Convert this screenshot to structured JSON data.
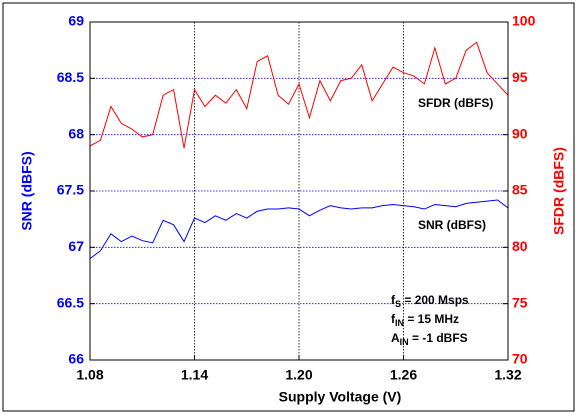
{
  "chart_data": {
    "type": "line",
    "x_label": "Supply Voltage (V)",
    "y_label": "SNR (dBFS)",
    "y2_label": "SFDR (dBFS)",
    "x": [
      1.08,
      1.086,
      1.092,
      1.098,
      1.104,
      1.11,
      1.116,
      1.122,
      1.128,
      1.134,
      1.14,
      1.146,
      1.152,
      1.158,
      1.164,
      1.17,
      1.176,
      1.182,
      1.188,
      1.194,
      1.2,
      1.206,
      1.212,
      1.218,
      1.224,
      1.23,
      1.236,
      1.242,
      1.248,
      1.254,
      1.26,
      1.266,
      1.272,
      1.278,
      1.284,
      1.29,
      1.296,
      1.302,
      1.308,
      1.314,
      1.32
    ],
    "series": [
      {
        "name": "SNR (dBFS)",
        "color": "#0000ff",
        "axis": "y",
        "values": [
          66.9,
          66.97,
          67.12,
          67.05,
          67.1,
          67.06,
          67.04,
          67.24,
          67.2,
          67.05,
          67.26,
          67.22,
          67.28,
          67.24,
          67.3,
          67.26,
          67.32,
          67.34,
          67.34,
          67.35,
          67.34,
          67.28,
          67.33,
          67.37,
          67.35,
          67.34,
          67.35,
          67.35,
          67.37,
          67.38,
          67.37,
          67.36,
          67.34,
          67.38,
          67.37,
          67.36,
          67.39,
          67.4,
          67.41,
          67.42,
          67.35
        ]
      },
      {
        "name": "SFDR (dBFS)",
        "color": "#ff0000",
        "axis": "y2",
        "values": [
          89,
          89.5,
          92.5,
          91,
          90.5,
          89.8,
          90,
          93.5,
          94,
          88.8,
          94,
          92.5,
          93.5,
          92.8,
          94,
          92.3,
          96.5,
          97,
          93.5,
          92.7,
          94.5,
          91.5,
          94.8,
          93,
          94.8,
          95,
          96.2,
          93,
          94.5,
          96,
          95.5,
          95.2,
          94.5,
          97.7,
          94.5,
          95,
          97.5,
          98.2,
          95.5,
          94.5,
          93.5
        ]
      }
    ],
    "xlim": [
      1.08,
      1.32
    ],
    "xticks": [
      1.08,
      1.14,
      {
        "value": 1.2,
        "label": "1.20"
      },
      1.26,
      1.32
    ],
    "ylim": [
      66,
      69
    ],
    "yticks": [
      66,
      66.5,
      67,
      67.5,
      68,
      68.5,
      69
    ],
    "y2lim": [
      70,
      100
    ],
    "y2ticks": [
      70,
      75,
      80,
      85,
      90,
      95,
      100
    ],
    "grid": true,
    "annotations": [
      {
        "main": "f",
        "sub": "S",
        "rest": " = 200 Msps"
      },
      {
        "main": "f",
        "sub": "IN",
        "rest": " = 15 MHz"
      },
      {
        "main": "A",
        "sub": "IN",
        "rest": " = -1 dBFS"
      }
    ]
  }
}
